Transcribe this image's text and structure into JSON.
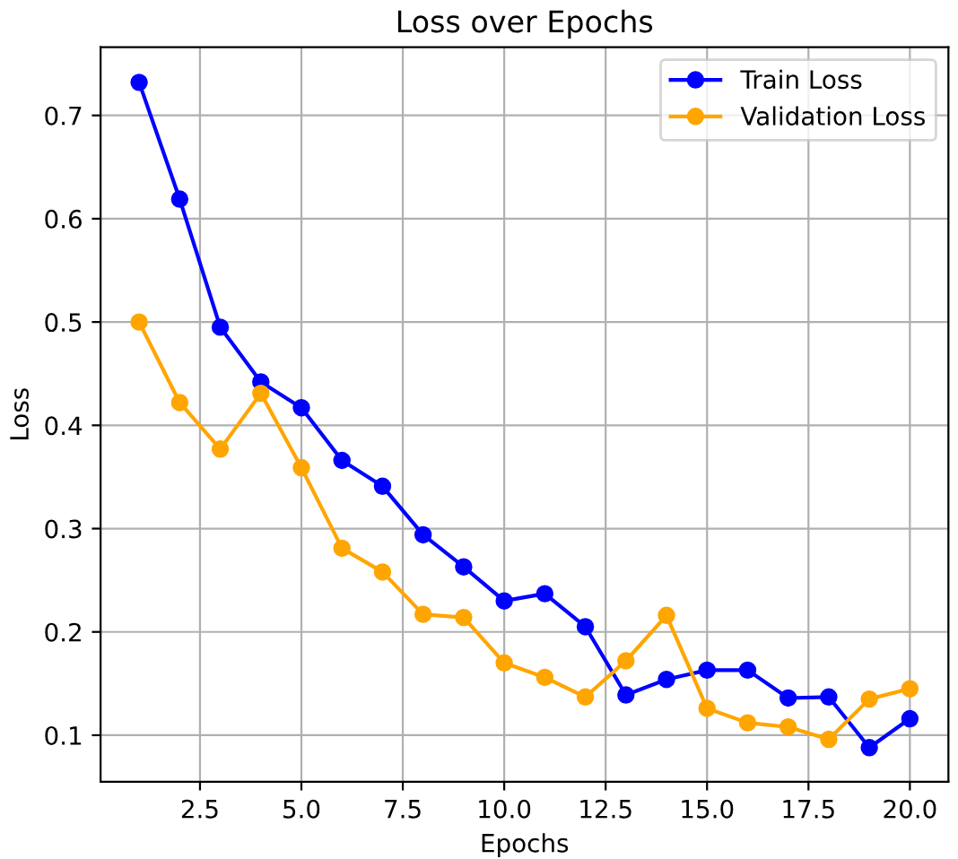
{
  "chart_data": {
    "type": "line",
    "title": "Loss over Epochs",
    "xlabel": "Epochs",
    "ylabel": "Loss",
    "x": [
      1,
      2,
      3,
      4,
      5,
      6,
      7,
      8,
      9,
      10,
      11,
      12,
      13,
      14,
      15,
      16,
      17,
      18,
      19,
      20
    ],
    "series": [
      {
        "name": "Train Loss",
        "color": "#0000ff",
        "values": [
          0.732,
          0.619,
          0.495,
          0.442,
          0.417,
          0.366,
          0.341,
          0.294,
          0.263,
          0.23,
          0.237,
          0.205,
          0.139,
          0.154,
          0.163,
          0.163,
          0.136,
          0.137,
          0.088,
          0.116
        ]
      },
      {
        "name": "Validation Loss",
        "color": "#ffa500",
        "values": [
          0.5,
          0.422,
          0.377,
          0.431,
          0.359,
          0.281,
          0.258,
          0.217,
          0.214,
          0.17,
          0.156,
          0.137,
          0.172,
          0.216,
          0.126,
          0.112,
          0.108,
          0.096,
          0.135,
          0.145
        ]
      }
    ],
    "xlim": [
      0.05,
      20.95
    ],
    "ylim": [
      0.055,
      0.766
    ],
    "xticks": [
      {
        "value": 2.5,
        "label": "2.5"
      },
      {
        "value": 5,
        "label": "5.0"
      },
      {
        "value": 7.5,
        "label": "7.5"
      },
      {
        "value": 10,
        "label": "10.0"
      },
      {
        "value": 12.5,
        "label": "12.5"
      },
      {
        "value": 15,
        "label": "15.0"
      },
      {
        "value": 17.5,
        "label": "17.5"
      },
      {
        "value": 20,
        "label": "20.0"
      }
    ],
    "yticks": [
      0.1,
      0.2,
      0.3,
      0.4,
      0.5,
      0.6,
      0.7
    ],
    "grid": true,
    "legend": "top right",
    "marker": "circle",
    "line_style": "solid"
  }
}
